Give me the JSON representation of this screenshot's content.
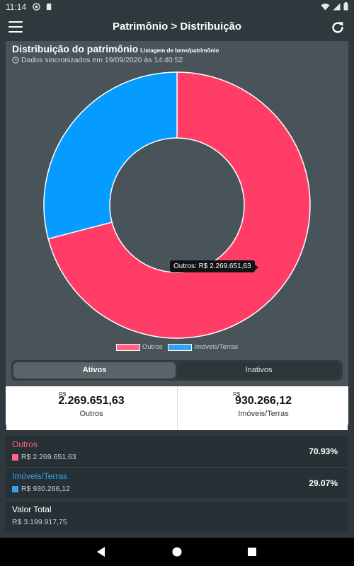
{
  "status": {
    "time": "11:14"
  },
  "header": {
    "title": "Patrimônio > Distribuição"
  },
  "card": {
    "title": "Distribuição do patrimônio",
    "subtitle": "Listagem de bens/patrimônio",
    "sync_text": "Dados sincronizados em 19/09/2020 às 14:40:52",
    "tooltip": "Outros: R$ 2.269.651,63"
  },
  "chart_data": {
    "type": "pie",
    "categories": [
      "Outros",
      "Imóveis/Terras"
    ],
    "values": [
      2269651.63,
      930266.12
    ],
    "colors": [
      "#ff3d67",
      "#059bff"
    ],
    "legend_placement": "bottom"
  },
  "tabs": {
    "active": "Ativos",
    "inactive": "Inativos"
  },
  "totals": [
    {
      "currency": "R$",
      "value": "2.269.651,63",
      "label": "Outros"
    },
    {
      "currency": "R$",
      "value": "930.266,12",
      "label": "Imóveis/Terras"
    }
  ],
  "items": [
    {
      "name": "Outros",
      "amount": "R$ 2.269.651,63",
      "percent": "70.93%",
      "color": "#ff6384"
    },
    {
      "name": "Imóveis/Terras",
      "amount": "R$ 930.266,12",
      "percent": "29.07%",
      "color": "#36a2eb"
    }
  ],
  "total": {
    "label": "Valor Total",
    "amount": "R$ 3.199.917,75"
  }
}
